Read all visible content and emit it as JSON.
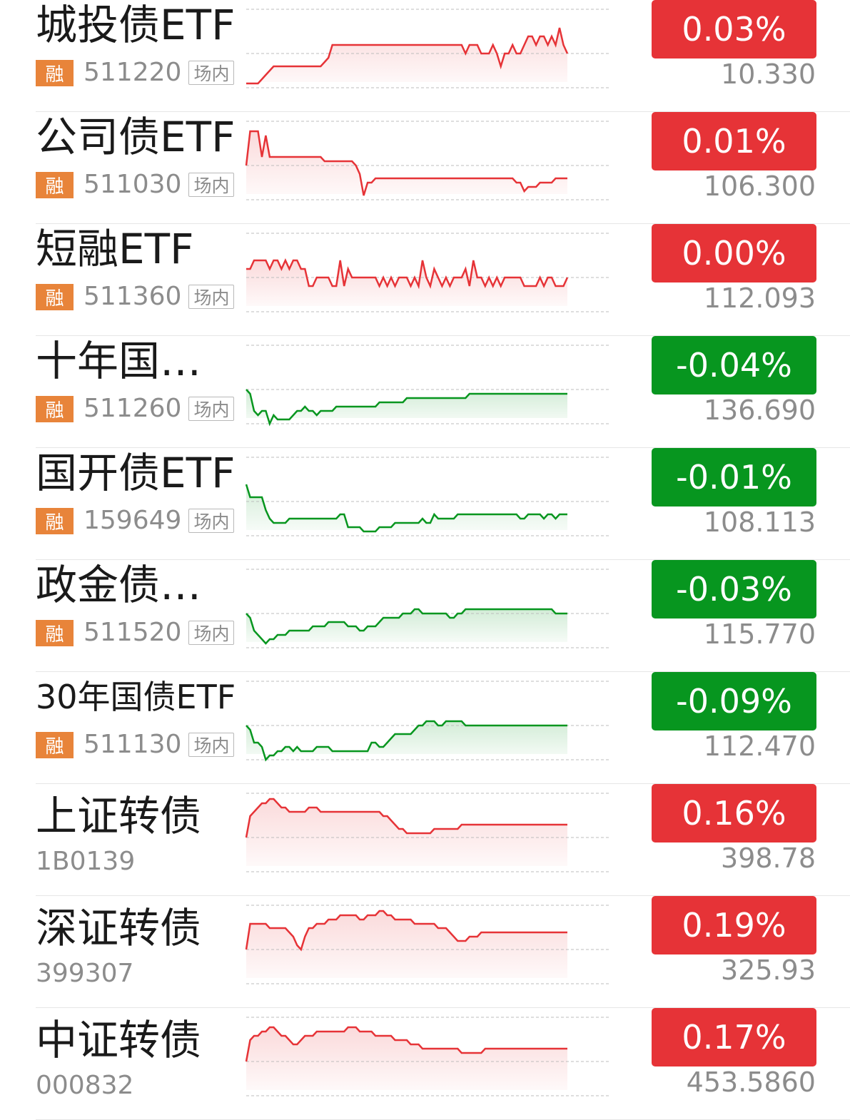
{
  "colors": {
    "up": "#e63337",
    "down": "#07961f",
    "margin_tag": "#e8843a"
  },
  "items": [
    {
      "name": "城投债ETF",
      "margin_tag": "融",
      "code": "511220",
      "market_tag": "场内",
      "change": "0.03%",
      "price": "10.330",
      "trend": "up",
      "sparkline": [
        -0.7,
        -0.7,
        -0.7,
        -0.7,
        -0.6,
        -0.5,
        -0.4,
        -0.3,
        -0.3,
        -0.3,
        -0.3,
        -0.3,
        -0.3,
        -0.3,
        -0.3,
        -0.3,
        -0.3,
        -0.3,
        -0.3,
        -0.3,
        -0.2,
        -0.1,
        0.2,
        0.2,
        0.2,
        0.2,
        0.2,
        0.2,
        0.2,
        0.2,
        0.2,
        0.2,
        0.2,
        0.2,
        0.2,
        0.2,
        0.2,
        0.2,
        0.2,
        0.2,
        0.2,
        0.2,
        0.2,
        0.2,
        0.2,
        0.2,
        0.2,
        0.2,
        0.2,
        0.2,
        0.2,
        0.2,
        0.2,
        0.2,
        0.2,
        0.2,
        0.0,
        0.2,
        0.2,
        0.2,
        0.0,
        0.0,
        0.0,
        0.2,
        0.0,
        -0.3,
        0.0,
        0.0,
        0.2,
        0.0,
        0.0,
        0.2,
        0.4,
        0.4,
        0.2,
        0.4,
        0.4,
        0.2,
        0.4,
        0.2,
        0.6,
        0.2,
        0.0
      ]
    },
    {
      "name": "公司债ETF",
      "margin_tag": "融",
      "code": "511030",
      "market_tag": "场内",
      "change": "0.01%",
      "price": "106.300",
      "trend": "up",
      "sparkline": [
        0.0,
        0.8,
        0.8,
        0.8,
        0.2,
        0.7,
        0.2,
        0.2,
        0.2,
        0.2,
        0.2,
        0.2,
        0.2,
        0.2,
        0.2,
        0.2,
        0.2,
        0.2,
        0.2,
        0.2,
        0.1,
        0.1,
        0.1,
        0.1,
        0.1,
        0.1,
        0.1,
        0.1,
        0.0,
        -0.2,
        -0.7,
        -0.4,
        -0.4,
        -0.3,
        -0.3,
        -0.3,
        -0.3,
        -0.3,
        -0.3,
        -0.3,
        -0.3,
        -0.3,
        -0.3,
        -0.3,
        -0.3,
        -0.3,
        -0.3,
        -0.3,
        -0.3,
        -0.3,
        -0.3,
        -0.3,
        -0.3,
        -0.3,
        -0.3,
        -0.3,
        -0.3,
        -0.3,
        -0.3,
        -0.3,
        -0.3,
        -0.3,
        -0.3,
        -0.3,
        -0.3,
        -0.3,
        -0.3,
        -0.3,
        -0.3,
        -0.4,
        -0.4,
        -0.6,
        -0.5,
        -0.5,
        -0.5,
        -0.4,
        -0.4,
        -0.4,
        -0.4,
        -0.3,
        -0.3,
        -0.3,
        -0.3
      ]
    },
    {
      "name": "短融ETF",
      "margin_tag": "融",
      "code": "511360",
      "market_tag": "场内",
      "change": "0.00%",
      "price": "112.093",
      "trend": "up",
      "sparkline": [
        0.2,
        0.2,
        0.4,
        0.4,
        0.4,
        0.4,
        0.2,
        0.4,
        0.4,
        0.2,
        0.4,
        0.2,
        0.4,
        0.4,
        0.2,
        0.2,
        -0.2,
        -0.2,
        0.0,
        0.0,
        0.0,
        0.0,
        -0.2,
        -0.2,
        0.4,
        -0.2,
        0.2,
        0.0,
        0.0,
        0.0,
        0.0,
        0.0,
        0.0,
        0.0,
        -0.2,
        0.0,
        -0.2,
        0.0,
        -0.2,
        0.0,
        0.0,
        0.0,
        -0.2,
        0.0,
        -0.2,
        0.4,
        0.0,
        -0.2,
        0.2,
        0.0,
        -0.2,
        0.0,
        -0.2,
        0.0,
        0.0,
        0.0,
        0.2,
        -0.2,
        0.4,
        0.0,
        0.0,
        -0.2,
        0.0,
        -0.2,
        0.0,
        -0.2,
        0.0,
        0.0,
        0.0,
        0.0,
        0.0,
        -0.2,
        -0.2,
        -0.2,
        -0.2,
        0.0,
        -0.2,
        0.0,
        0.0,
        -0.2,
        -0.2,
        -0.2,
        0.0
      ]
    },
    {
      "name": "十年国债ETF",
      "margin_tag": "融",
      "code": "511260",
      "market_tag": "场内",
      "change": "-0.04%",
      "price": "136.690",
      "trend": "down",
      "sparkline": [
        0.0,
        -0.1,
        -0.5,
        -0.6,
        -0.5,
        -0.5,
        -0.8,
        -0.6,
        -0.7,
        -0.7,
        -0.7,
        -0.7,
        -0.6,
        -0.5,
        -0.5,
        -0.4,
        -0.5,
        -0.5,
        -0.6,
        -0.5,
        -0.5,
        -0.5,
        -0.5,
        -0.4,
        -0.4,
        -0.4,
        -0.4,
        -0.4,
        -0.4,
        -0.4,
        -0.4,
        -0.4,
        -0.4,
        -0.4,
        -0.3,
        -0.3,
        -0.3,
        -0.3,
        -0.3,
        -0.3,
        -0.3,
        -0.2,
        -0.2,
        -0.2,
        -0.2,
        -0.2,
        -0.2,
        -0.2,
        -0.2,
        -0.2,
        -0.2,
        -0.2,
        -0.2,
        -0.2,
        -0.2,
        -0.2,
        -0.2,
        -0.1,
        -0.1,
        -0.1,
        -0.1,
        -0.1,
        -0.1,
        -0.1,
        -0.1,
        -0.1,
        -0.1,
        -0.1,
        -0.1,
        -0.1,
        -0.1,
        -0.1,
        -0.1,
        -0.1,
        -0.1,
        -0.1,
        -0.1,
        -0.1,
        -0.1,
        -0.1,
        -0.1,
        -0.1,
        -0.1
      ]
    },
    {
      "name": "国开债ETF",
      "margin_tag": "融",
      "code": "159649",
      "market_tag": "场内",
      "change": "-0.01%",
      "price": "108.113",
      "trend": "down",
      "sparkline": [
        0.4,
        0.1,
        0.1,
        0.1,
        0.1,
        -0.2,
        -0.4,
        -0.5,
        -0.5,
        -0.5,
        -0.5,
        -0.4,
        -0.4,
        -0.4,
        -0.4,
        -0.4,
        -0.4,
        -0.4,
        -0.4,
        -0.4,
        -0.4,
        -0.4,
        -0.4,
        -0.4,
        -0.3,
        -0.3,
        -0.6,
        -0.6,
        -0.6,
        -0.6,
        -0.7,
        -0.7,
        -0.7,
        -0.7,
        -0.6,
        -0.6,
        -0.6,
        -0.6,
        -0.5,
        -0.5,
        -0.5,
        -0.5,
        -0.5,
        -0.5,
        -0.5,
        -0.4,
        -0.5,
        -0.5,
        -0.3,
        -0.4,
        -0.4,
        -0.4,
        -0.4,
        -0.4,
        -0.3,
        -0.3,
        -0.3,
        -0.3,
        -0.3,
        -0.3,
        -0.3,
        -0.3,
        -0.3,
        -0.3,
        -0.3,
        -0.3,
        -0.3,
        -0.3,
        -0.3,
        -0.3,
        -0.4,
        -0.4,
        -0.3,
        -0.3,
        -0.3,
        -0.3,
        -0.4,
        -0.3,
        -0.3,
        -0.4,
        -0.3,
        -0.3,
        -0.3
      ]
    },
    {
      "name": "政金债券ETF",
      "margin_tag": "融",
      "code": "511520",
      "market_tag": "场内",
      "change": "-0.03%",
      "price": "115.770",
      "trend": "down",
      "sparkline": [
        0.0,
        -0.1,
        -0.4,
        -0.5,
        -0.6,
        -0.7,
        -0.6,
        -0.6,
        -0.5,
        -0.5,
        -0.5,
        -0.4,
        -0.4,
        -0.4,
        -0.4,
        -0.4,
        -0.4,
        -0.3,
        -0.3,
        -0.3,
        -0.3,
        -0.2,
        -0.2,
        -0.2,
        -0.2,
        -0.2,
        -0.3,
        -0.3,
        -0.3,
        -0.4,
        -0.4,
        -0.3,
        -0.3,
        -0.3,
        -0.2,
        -0.1,
        -0.1,
        -0.1,
        -0.1,
        -0.1,
        0.0,
        0.0,
        0.0,
        0.1,
        0.1,
        0.0,
        0.0,
        0.0,
        0.0,
        0.0,
        0.0,
        0.0,
        -0.1,
        -0.1,
        0.0,
        0.0,
        0.1,
        0.1,
        0.1,
        0.1,
        0.1,
        0.1,
        0.1,
        0.1,
        0.1,
        0.1,
        0.1,
        0.1,
        0.1,
        0.1,
        0.1,
        0.1,
        0.1,
        0.1,
        0.1,
        0.1,
        0.1,
        0.1,
        0.1,
        0.0,
        0.0,
        0.0,
        0.0
      ]
    },
    {
      "name": "30年国债ETF",
      "margin_tag": "融",
      "code": "511130",
      "market_tag": "场内",
      "change": "-0.09%",
      "price": "112.470",
      "trend": "down",
      "sparkline": [
        0.0,
        -0.1,
        -0.4,
        -0.4,
        -0.5,
        -0.8,
        -0.7,
        -0.7,
        -0.6,
        -0.6,
        -0.5,
        -0.5,
        -0.6,
        -0.5,
        -0.6,
        -0.6,
        -0.6,
        -0.6,
        -0.5,
        -0.5,
        -0.5,
        -0.5,
        -0.6,
        -0.6,
        -0.6,
        -0.6,
        -0.6,
        -0.6,
        -0.6,
        -0.6,
        -0.6,
        -0.6,
        -0.4,
        -0.4,
        -0.5,
        -0.5,
        -0.4,
        -0.3,
        -0.2,
        -0.2,
        -0.2,
        -0.2,
        -0.2,
        -0.1,
        0.0,
        0.0,
        0.1,
        0.1,
        0.1,
        0.0,
        0.0,
        0.1,
        0.1,
        0.1,
        0.1,
        0.1,
        0.0,
        0.0,
        0.0,
        0.0,
        0.0,
        0.0,
        0.0,
        0.0,
        0.0,
        0.0,
        0.0,
        0.0,
        0.0,
        0.0,
        0.0,
        0.0,
        0.0,
        0.0,
        0.0,
        0.0,
        0.0,
        0.0,
        0.0,
        0.0,
        0.0,
        0.0,
        0.0
      ]
    },
    {
      "name": "上证转债",
      "margin_tag": "",
      "code": "1B0139",
      "market_tag": "",
      "change": "0.16%",
      "price": "398.78",
      "trend": "up",
      "sparkline": [
        0.0,
        0.5,
        0.6,
        0.7,
        0.8,
        0.8,
        0.9,
        0.9,
        0.8,
        0.7,
        0.7,
        0.6,
        0.6,
        0.6,
        0.6,
        0.6,
        0.7,
        0.7,
        0.7,
        0.6,
        0.6,
        0.6,
        0.6,
        0.6,
        0.6,
        0.6,
        0.6,
        0.6,
        0.6,
        0.6,
        0.6,
        0.6,
        0.6,
        0.6,
        0.6,
        0.5,
        0.5,
        0.4,
        0.3,
        0.2,
        0.2,
        0.1,
        0.1,
        0.1,
        0.1,
        0.1,
        0.1,
        0.1,
        0.2,
        0.2,
        0.2,
        0.2,
        0.2,
        0.2,
        0.2,
        0.3,
        0.3,
        0.3,
        0.3,
        0.3,
        0.3,
        0.3,
        0.3,
        0.3,
        0.3,
        0.3,
        0.3,
        0.3,
        0.3,
        0.3,
        0.3,
        0.3,
        0.3,
        0.3,
        0.3,
        0.3,
        0.3,
        0.3,
        0.3,
        0.3,
        0.3,
        0.3,
        0.3
      ]
    },
    {
      "name": "深证转债",
      "margin_tag": "",
      "code": "399307",
      "market_tag": "",
      "change": "0.19%",
      "price": "325.93",
      "trend": "up",
      "sparkline": [
        0.0,
        0.6,
        0.6,
        0.6,
        0.6,
        0.6,
        0.5,
        0.5,
        0.5,
        0.5,
        0.5,
        0.4,
        0.3,
        0.1,
        0.0,
        0.3,
        0.5,
        0.5,
        0.6,
        0.6,
        0.6,
        0.7,
        0.7,
        0.7,
        0.8,
        0.8,
        0.8,
        0.8,
        0.8,
        0.7,
        0.7,
        0.8,
        0.8,
        0.8,
        0.9,
        0.9,
        0.8,
        0.8,
        0.7,
        0.7,
        0.7,
        0.7,
        0.7,
        0.6,
        0.6,
        0.6,
        0.6,
        0.6,
        0.6,
        0.5,
        0.5,
        0.5,
        0.4,
        0.3,
        0.2,
        0.2,
        0.2,
        0.3,
        0.3,
        0.3,
        0.4,
        0.4,
        0.4,
        0.4,
        0.4,
        0.4,
        0.4,
        0.4,
        0.4,
        0.4,
        0.4,
        0.4,
        0.4,
        0.4,
        0.4,
        0.4,
        0.4,
        0.4,
        0.4,
        0.4,
        0.4,
        0.4,
        0.4
      ]
    },
    {
      "name": "中证转债",
      "margin_tag": "",
      "code": "000832",
      "market_tag": "",
      "change": "0.17%",
      "price": "453.5860",
      "trend": "up",
      "sparkline": [
        0.0,
        0.5,
        0.6,
        0.6,
        0.7,
        0.7,
        0.8,
        0.8,
        0.7,
        0.6,
        0.6,
        0.5,
        0.4,
        0.4,
        0.5,
        0.6,
        0.6,
        0.6,
        0.7,
        0.7,
        0.7,
        0.7,
        0.7,
        0.7,
        0.7,
        0.7,
        0.8,
        0.8,
        0.8,
        0.7,
        0.7,
        0.7,
        0.7,
        0.6,
        0.6,
        0.6,
        0.6,
        0.6,
        0.5,
        0.5,
        0.5,
        0.5,
        0.4,
        0.4,
        0.4,
        0.3,
        0.3,
        0.3,
        0.3,
        0.3,
        0.3,
        0.3,
        0.3,
        0.3,
        0.3,
        0.2,
        0.2,
        0.2,
        0.2,
        0.2,
        0.2,
        0.3,
        0.3,
        0.3,
        0.3,
        0.3,
        0.3,
        0.3,
        0.3,
        0.3,
        0.3,
        0.3,
        0.3,
        0.3,
        0.3,
        0.3,
        0.3,
        0.3,
        0.3,
        0.3,
        0.3,
        0.3,
        0.3
      ]
    }
  ]
}
